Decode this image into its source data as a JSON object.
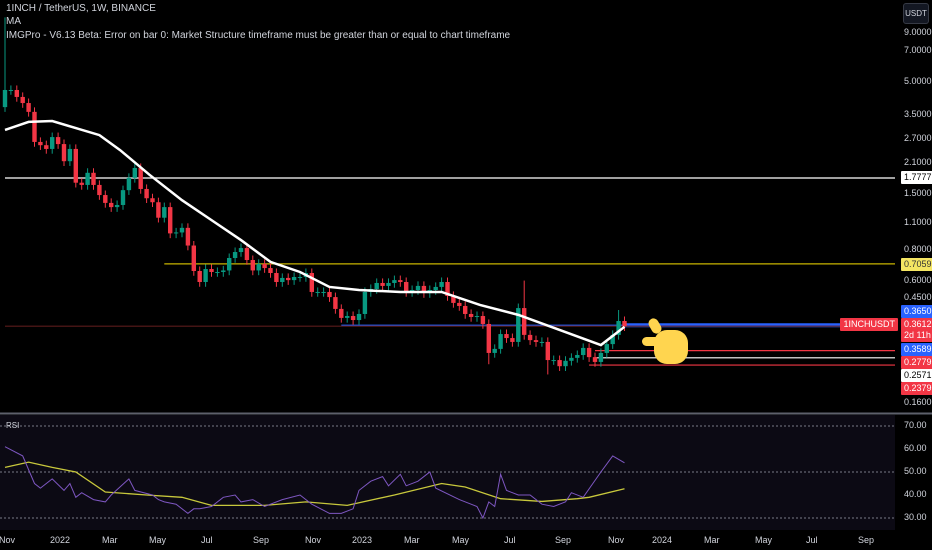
{
  "header": {
    "symbol_line": "1INCH / TetherUS, 1W, BINANCE",
    "indicator_ma": "MA",
    "indicator_error": "IMGPro - V6.13 Beta: Error on bar 0: Market Structure timeframe must be greater than or equal to chart timeframe"
  },
  "currency_button": "USDT",
  "price_axis": [
    "9.0000",
    "7.0000",
    "5.0000",
    "3.5000",
    "2.7000",
    "2.1000",
    "1.5000",
    "1.1000",
    "0.8000",
    "0.6000",
    "0.4500",
    "0.1600"
  ],
  "price_tags": {
    "white_level": "1.7777",
    "yellow_level": "0.7059",
    "blue_level": "0.3650",
    "symbol": "1INCHUSDT",
    "last_price": "0.3612",
    "countdown": "2d 11h",
    "ma_value": "0.3589",
    "red_level_1": "0.2779",
    "white_level_2": "0.2571",
    "red_level_2": "0.2379"
  },
  "rsi_panel": {
    "title": "RSI",
    "axis": [
      "70.00",
      "60.00",
      "50.00",
      "40.00",
      "30.00"
    ]
  },
  "time_axis": [
    "Nov",
    "2022",
    "Mar",
    "May",
    "Jul",
    "Sep",
    "Nov",
    "2023",
    "Mar",
    "May",
    "Jul",
    "Sep",
    "Nov",
    "2024",
    "Mar",
    "May",
    "Jul",
    "Sep"
  ],
  "colors": {
    "up": "#089981",
    "down": "#f23645",
    "ma": "#ffffff",
    "rsi": "#7e57c2",
    "rsi_ma": "#c8c83c",
    "blue": "#2962ff",
    "yellow": "#c8b400"
  },
  "chart_data": {
    "type": "candlestick",
    "title": "1INCH / TetherUS, 1W, BINANCE",
    "scale": "log",
    "ylim": [
      0.16,
      9.0
    ],
    "first_open": 3.81,
    "closes": [
      4.58,
      4.58,
      4.25,
      3.98,
      3.62,
      2.62,
      2.53,
      2.43,
      2.76,
      2.56,
      2.13,
      2.43,
      1.69,
      1.65,
      1.88,
      1.65,
      1.48,
      1.36,
      1.3,
      1.33,
      1.56,
      1.78,
      1.98,
      1.58,
      1.43,
      1.37,
      1.16,
      1.3,
      0.98,
      0.99,
      1.04,
      0.86,
      0.654,
      0.581,
      0.668,
      0.647,
      0.647,
      0.658,
      0.752,
      0.802,
      0.837,
      0.736,
      0.658,
      0.706,
      0.675,
      0.64,
      0.581,
      0.607,
      0.593,
      0.613,
      0.613,
      0.64,
      0.522,
      0.522,
      0.522,
      0.494,
      0.435,
      0.395,
      0.403,
      0.386,
      0.412,
      0.522,
      0.539,
      0.575,
      0.557,
      0.575,
      0.593,
      0.581,
      0.522,
      0.533,
      0.557,
      0.516,
      0.533,
      0.551,
      0.581,
      0.5,
      0.464,
      0.449,
      0.412,
      0.399,
      0.403,
      0.37,
      0.271,
      0.283,
      0.332,
      0.318,
      0.305,
      0.439,
      0.329,
      0.311,
      0.305,
      0.305,
      0.251,
      0.251,
      0.235,
      0.249,
      0.257,
      0.265,
      0.286,
      0.259,
      0.246,
      0.271,
      0.298,
      0.329,
      0.382,
      0.3612
    ],
    "wick_overrides": [
      {
        "i": 0,
        "high": 10.0
      },
      {
        "i": 82,
        "low": 0.24
      },
      {
        "i": 88,
        "high": 0.59
      },
      {
        "i": 92,
        "low": 0.215
      },
      {
        "i": 104,
        "high": 0.43
      }
    ],
    "ma_points": [
      [
        0,
        2.98
      ],
      [
        4,
        3.25
      ],
      [
        8,
        3.28
      ],
      [
        12,
        3.04
      ],
      [
        16,
        2.82
      ],
      [
        19.5,
        2.4
      ],
      [
        24.5,
        1.84
      ],
      [
        30,
        1.4
      ],
      [
        35,
        1.13
      ],
      [
        40,
        0.912
      ],
      [
        45,
        0.721
      ],
      [
        50,
        0.647
      ],
      [
        55,
        0.551
      ],
      [
        60,
        0.533
      ],
      [
        67,
        0.522
      ],
      [
        74,
        0.522
      ],
      [
        80.5,
        0.454
      ],
      [
        87,
        0.408
      ],
      [
        94,
        0.347
      ],
      [
        101,
        0.295
      ],
      [
        105,
        0.3589
      ]
    ],
    "levels": [
      {
        "price": 1.7777,
        "color": "#ffffff",
        "from": 0
      },
      {
        "price": 0.7059,
        "color": "#c8b400",
        "from": 27
      },
      {
        "price": 0.365,
        "color": "#2962ff",
        "from": 57
      },
      {
        "price": 0.3612,
        "color": "#5a1a1a",
        "from": 0
      },
      {
        "price": 0.2779,
        "color": "#f23645",
        "from": 100
      },
      {
        "price": 0.2571,
        "color": "#ffffff",
        "from": 100
      },
      {
        "price": 0.2379,
        "color": "#f23645",
        "from": 99
      }
    ],
    "rsi": [
      [
        0,
        61
      ],
      [
        3,
        57
      ],
      [
        5,
        45
      ],
      [
        6,
        43
      ],
      [
        8,
        47
      ],
      [
        10,
        42
      ],
      [
        11,
        45
      ],
      [
        12,
        39
      ],
      [
        13,
        41
      ],
      [
        15,
        38
      ],
      [
        17,
        37
      ],
      [
        18,
        40
      ],
      [
        21,
        47
      ],
      [
        22,
        42
      ],
      [
        25,
        40
      ],
      [
        26,
        38
      ],
      [
        27,
        37
      ],
      [
        29,
        36
      ],
      [
        31,
        32
      ],
      [
        32,
        34
      ],
      [
        33,
        34
      ],
      [
        35,
        35
      ],
      [
        37,
        39
      ],
      [
        39,
        40
      ],
      [
        40,
        37
      ],
      [
        42,
        38
      ],
      [
        44,
        35
      ],
      [
        47,
        38
      ],
      [
        50,
        40
      ],
      [
        51,
        38
      ],
      [
        52,
        36
      ],
      [
        55,
        32
      ],
      [
        57,
        32
      ],
      [
        59,
        34
      ],
      [
        60,
        42
      ],
      [
        62,
        46
      ],
      [
        64,
        48
      ],
      [
        65,
        44
      ],
      [
        67,
        49
      ],
      [
        68,
        44
      ],
      [
        70,
        46
      ],
      [
        72,
        50
      ],
      [
        73,
        43
      ],
      [
        77,
        38
      ],
      [
        79,
        36
      ],
      [
        80,
        35
      ],
      [
        81,
        30
      ],
      [
        82,
        37
      ],
      [
        83,
        35
      ],
      [
        84,
        49
      ],
      [
        85,
        42
      ],
      [
        87,
        40
      ],
      [
        89,
        40
      ],
      [
        91,
        36
      ],
      [
        93,
        35
      ],
      [
        95,
        37
      ],
      [
        96,
        41
      ],
      [
        98,
        39
      ],
      [
        101,
        50
      ],
      [
        103,
        57
      ],
      [
        105,
        54
      ]
    ],
    "rsi_ma": [
      [
        0,
        52
      ],
      [
        4,
        54.3
      ],
      [
        8,
        52
      ],
      [
        12,
        50
      ],
      [
        17,
        41.3
      ],
      [
        24,
        40
      ],
      [
        30,
        39
      ],
      [
        35,
        35.5
      ],
      [
        44,
        35.5
      ],
      [
        51,
        37
      ],
      [
        58,
        35.5
      ],
      [
        66,
        40
      ],
      [
        74,
        45
      ],
      [
        78,
        43.5
      ],
      [
        84,
        38.4
      ],
      [
        91,
        37.2
      ],
      [
        97,
        38.4
      ],
      [
        99,
        39
      ],
      [
        105,
        42.7
      ]
    ],
    "rsi_ylim": [
      30,
      70
    ]
  }
}
